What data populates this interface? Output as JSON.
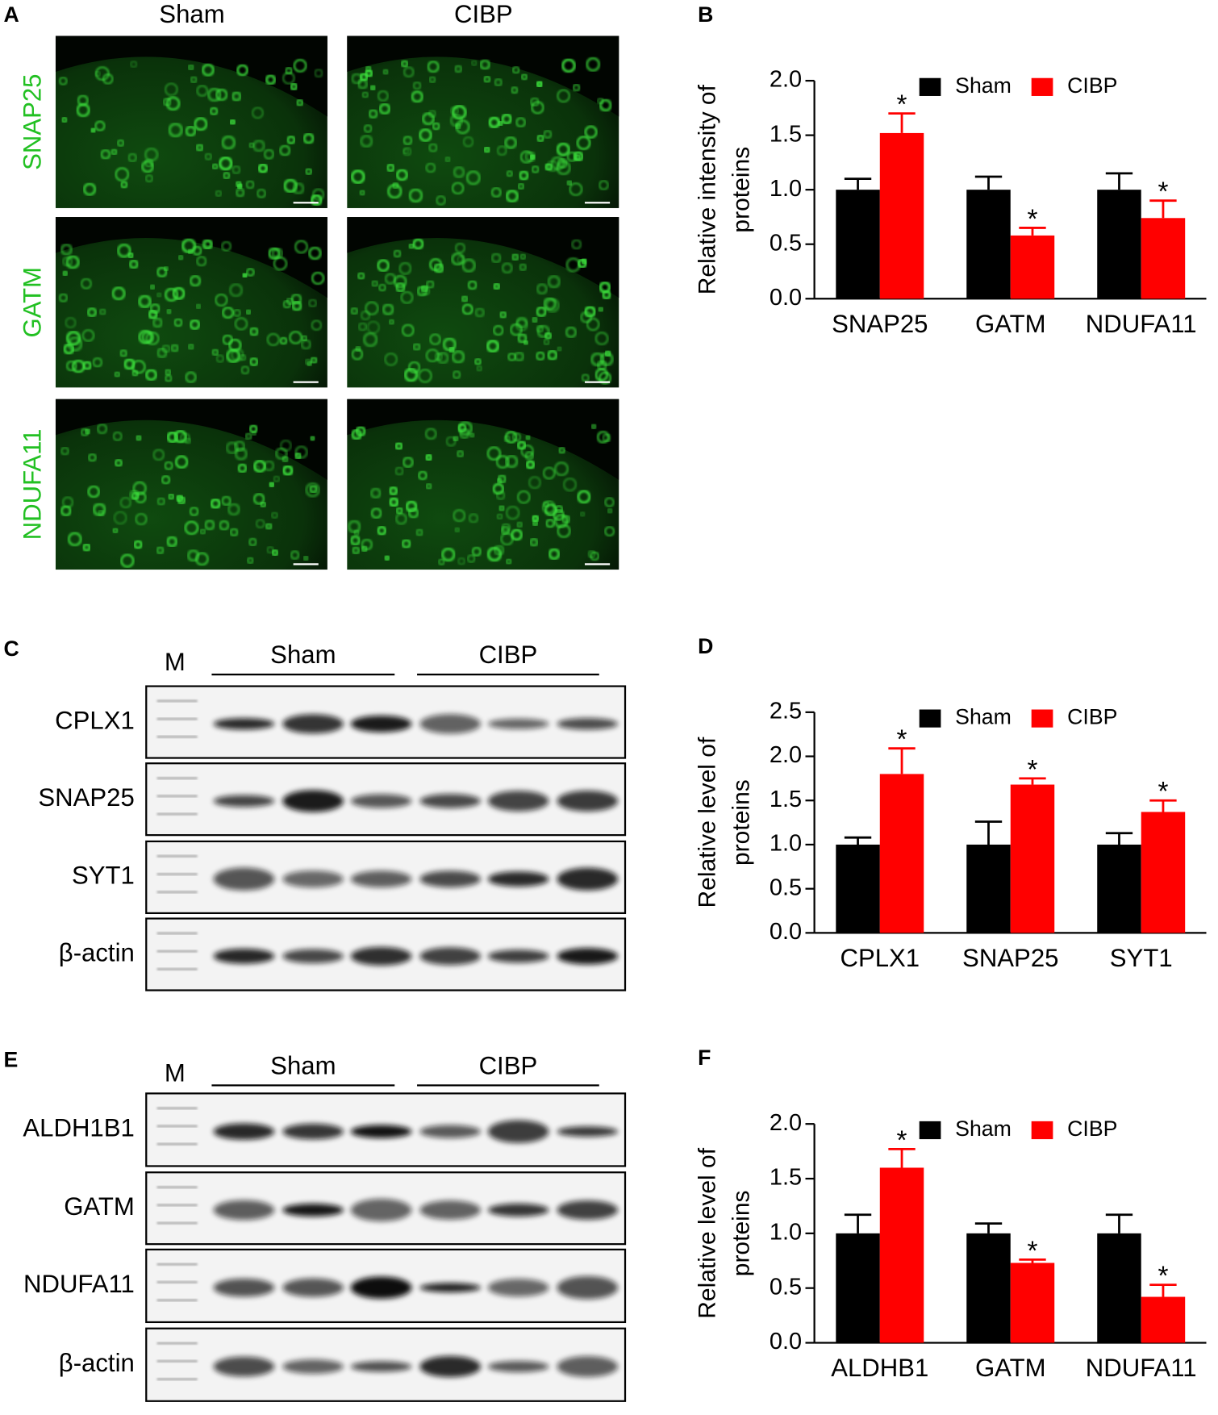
{
  "panel_a": {
    "label": "A",
    "columns": [
      "Sham",
      "CIBP"
    ],
    "rows": [
      "SNAP25",
      "GATM",
      "NDUFA11"
    ]
  },
  "panel_c": {
    "label": "C",
    "marker": "M",
    "groups": [
      "Sham",
      "CIBP"
    ],
    "rows": [
      "CPLX1",
      "SNAP25",
      "SYT1",
      "β-actin"
    ]
  },
  "panel_e": {
    "label": "E",
    "marker": "M",
    "groups": [
      "Sham",
      "CIBP"
    ],
    "rows": [
      "ALDH1B1",
      "GATM",
      "NDUFA11",
      "β-actin"
    ]
  },
  "chart_data": [
    {
      "type": "bar",
      "label": "B",
      "ylabel": [
        "Relative intensity of",
        "proteins"
      ],
      "categories": [
        "SNAP25",
        "GATM",
        "NDUFA11"
      ],
      "series": [
        {
          "name": "Sham",
          "color": "#000000",
          "values": [
            1.0,
            1.0,
            1.0
          ],
          "errors": [
            0.1,
            0.12,
            0.15
          ]
        },
        {
          "name": "CIBP",
          "color": "#ff0000",
          "values": [
            1.52,
            0.58,
            0.74
          ],
          "errors": [
            0.18,
            0.07,
            0.16
          ],
          "significance": [
            "*",
            "*",
            "*"
          ]
        }
      ],
      "ylim": [
        0,
        2.0
      ],
      "yticks": [
        {
          "value": 0,
          "label": "0.0"
        },
        0.5,
        {
          "value": 1,
          "label": "1.0"
        },
        1.5,
        {
          "value": 2,
          "label": "2.0"
        }
      ],
      "legend": "top"
    },
    {
      "type": "bar",
      "label": "D",
      "ylabel": [
        "Relative level of",
        "proteins"
      ],
      "categories": [
        "CPLX1",
        "SNAP25",
        "SYT1"
      ],
      "series": [
        {
          "name": "Sham",
          "color": "#000000",
          "values": [
            1.0,
            1.0,
            1.0
          ],
          "errors": [
            0.08,
            0.26,
            0.13
          ]
        },
        {
          "name": "CIBP",
          "color": "#ff0000",
          "values": [
            1.8,
            1.68,
            1.37
          ],
          "errors": [
            0.29,
            0.07,
            0.13
          ],
          "significance": [
            "*",
            "*",
            "*"
          ]
        }
      ],
      "ylim": [
        0,
        2.5
      ],
      "yticks": [
        {
          "value": 0,
          "label": "0.0"
        },
        0.5,
        {
          "value": 1,
          "label": "1.0"
        },
        1.5,
        {
          "value": 2,
          "label": "2.0"
        },
        2.5
      ],
      "legend": "top"
    },
    {
      "type": "bar",
      "label": "F",
      "ylabel": [
        "Relative  level of",
        "proteins"
      ],
      "categories": [
        "ALDHB1",
        "GATM",
        "NDUFA11"
      ],
      "series": [
        {
          "name": "Sham",
          "color": "#000000",
          "values": [
            1.0,
            1.0,
            1.0
          ],
          "errors": [
            0.17,
            0.09,
            0.17
          ]
        },
        {
          "name": "CIBP",
          "color": "#ff0000",
          "values": [
            1.6,
            0.73,
            0.42
          ],
          "errors": [
            0.17,
            0.03,
            0.11
          ],
          "significance": [
            "*",
            "*",
            "*"
          ]
        }
      ],
      "ylim": [
        0,
        2.0
      ],
      "yticks": [
        {
          "value": 0,
          "label": "0.0"
        },
        0.5,
        {
          "value": 1,
          "label": "1.0"
        },
        1.5,
        {
          "value": 2,
          "label": "2.0"
        }
      ],
      "legend": "top"
    }
  ]
}
